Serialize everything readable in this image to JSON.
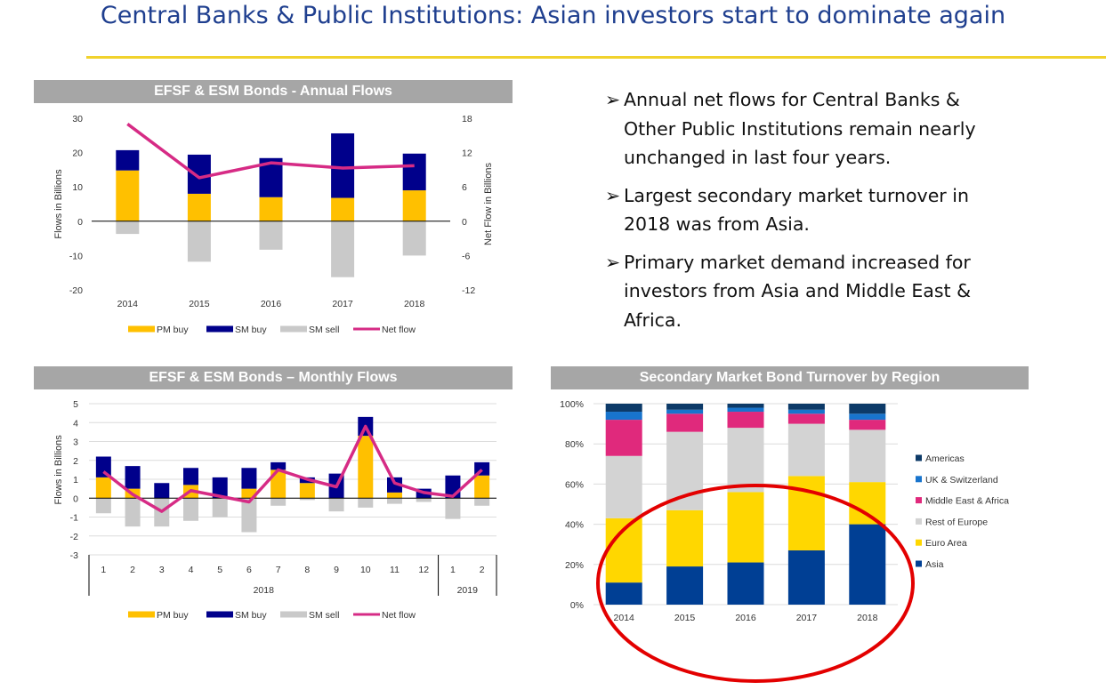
{
  "page": {
    "title": "Central Banks & Public Institutions: Asian investors start to dominate again"
  },
  "bullets": [
    {
      "arrow": "➢",
      "text": "Annual net flows for Central Banks & Other Public Institutions remain nearly unchanged in last four years."
    },
    {
      "arrow": "➢",
      "text": "Largest secondary market turnover in 2018 was from Asia."
    },
    {
      "arrow": "➢",
      "text": "Primary market demand increased for investors from Asia and Middle East & Africa."
    }
  ],
  "colors": {
    "pm_buy": "#ffc000",
    "sm_buy": "#00008b",
    "sm_sell": "#c9c9c9",
    "net_flow": "#d62b85",
    "asia": "#003f94",
    "euro_area": "#ffd700",
    "rest_of_europe": "#d3d3d3",
    "middle_east_africa": "#e0297c",
    "uk_switzerland": "#1874cd",
    "americas": "#0d3a68",
    "highlight_ellipse": "#e30000"
  },
  "chart_data": [
    {
      "id": "annual",
      "type": "bar",
      "title": "EFSF & ESM Bonds - Annual Flows",
      "ylabel": "Flows in Billions",
      "y2label": "Net Flow in Billions",
      "ylim": [
        -20,
        30
      ],
      "y2lim": [
        -12,
        18
      ],
      "yticks": [
        30,
        20,
        10,
        0,
        -10,
        -20
      ],
      "y2ticks": [
        18,
        12,
        6,
        0,
        -6,
        -12
      ],
      "categories": [
        "2014",
        "2015",
        "2016",
        "2017",
        "2018"
      ],
      "series": [
        {
          "name": "PM buy",
          "values": [
            14.8,
            8.0,
            7.0,
            6.8,
            9.0
          ]
        },
        {
          "name": "SM buy",
          "values": [
            5.9,
            11.4,
            11.4,
            18.8,
            10.7
          ]
        },
        {
          "name": "SM sell",
          "values": [
            -3.7,
            -11.8,
            -8.3,
            -16.3,
            -10.0
          ]
        },
        {
          "name": "Net flow",
          "axis": "secondary",
          "values": [
            17.0,
            7.6,
            10.2,
            9.3,
            9.7
          ]
        }
      ],
      "legend": {
        "position": "bottom",
        "items": [
          "PM buy",
          "SM buy",
          "SM sell",
          "Net flow"
        ]
      }
    },
    {
      "id": "monthly",
      "type": "bar",
      "title": "EFSF & ESM Bonds – Monthly Flows",
      "ylabel": "Flows in Billions",
      "ylim": [
        -3,
        5
      ],
      "yticks": [
        5,
        4,
        3,
        2,
        1,
        0,
        -1,
        -2,
        -3
      ],
      "categories": [
        "1",
        "2",
        "3",
        "4",
        "5",
        "6",
        "7",
        "8",
        "9",
        "10",
        "11",
        "12",
        "1",
        "2"
      ],
      "groups": [
        {
          "label": "2018"
        },
        {
          "label": "2019"
        }
      ],
      "series": [
        {
          "name": "PM buy",
          "values": [
            1.1,
            0.5,
            0.0,
            0.7,
            0.0,
            0.5,
            1.5,
            0.8,
            0.0,
            3.3,
            0.3,
            0.0,
            0.0,
            1.2
          ]
        },
        {
          "name": "SM buy",
          "values": [
            1.1,
            1.2,
            0.8,
            0.9,
            1.1,
            1.1,
            0.4,
            0.3,
            1.3,
            1.0,
            0.8,
            0.5,
            1.2,
            0.7
          ]
        },
        {
          "name": "SM sell",
          "values": [
            -0.8,
            -1.5,
            -1.5,
            -1.2,
            -1.0,
            -1.8,
            -0.4,
            -0.1,
            -0.7,
            -0.5,
            -0.3,
            -0.2,
            -1.1,
            -0.4
          ]
        },
        {
          "name": "Net flow",
          "values": [
            1.4,
            0.2,
            -0.7,
            0.4,
            0.1,
            -0.2,
            1.5,
            1.0,
            0.6,
            3.8,
            0.8,
            0.3,
            0.1,
            1.5
          ]
        }
      ],
      "legend": {
        "position": "bottom",
        "items": [
          "PM buy",
          "SM buy",
          "SM sell",
          "Net flow"
        ]
      }
    },
    {
      "id": "turnover",
      "type": "bar",
      "stacked": "percent",
      "title": "Secondary Market Bond Turnover by Region",
      "ylim": [
        0,
        100
      ],
      "yticks": [
        "100%",
        "80%",
        "60%",
        "40%",
        "20%",
        "0%"
      ],
      "categories": [
        "2014",
        "2015",
        "2016",
        "2017",
        "2018"
      ],
      "series": [
        {
          "name": "Asia",
          "values": [
            11,
            19,
            21,
            27,
            40
          ]
        },
        {
          "name": "Euro Area",
          "values": [
            32,
            28,
            35,
            37,
            21
          ]
        },
        {
          "name": "Rest of Europe",
          "values": [
            31,
            39,
            32,
            26,
            26
          ]
        },
        {
          "name": "Middle East & Africa",
          "values": [
            18,
            9,
            8,
            5,
            5
          ]
        },
        {
          "name": "UK & Switzerland",
          "values": [
            4,
            2,
            2,
            2,
            3
          ]
        },
        {
          "name": "Americas",
          "values": [
            4,
            3,
            2,
            3,
            5
          ]
        }
      ],
      "legend": {
        "position": "right",
        "items": [
          "Americas",
          "UK & Switzerland",
          "Middle East & Africa",
          "Rest of Europe",
          "Euro Area",
          "Asia"
        ]
      },
      "annotation": "ellipse highlighting Asia and Euro Area shares"
    }
  ]
}
